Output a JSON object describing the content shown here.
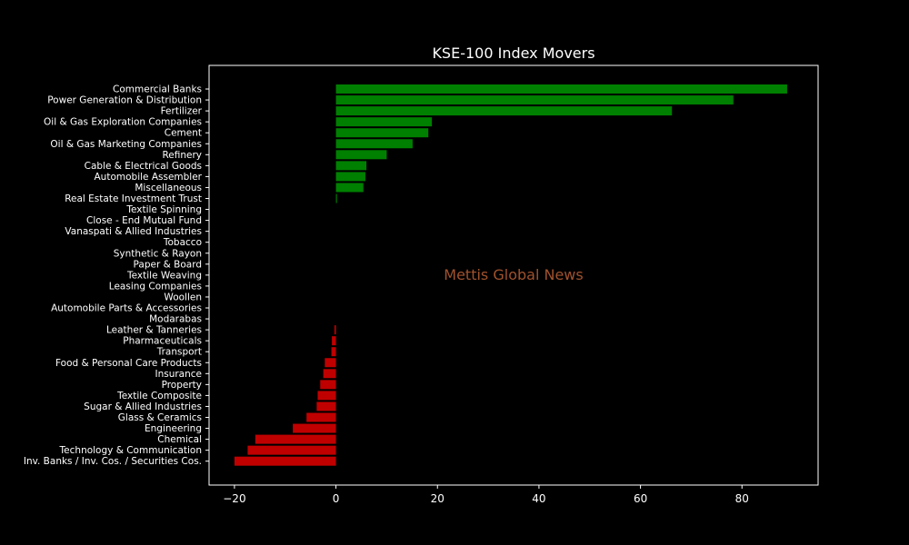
{
  "colors": {
    "background": "#000000",
    "positive": "#008000",
    "negative": "#c00000",
    "text": "#ffffff",
    "watermark": "#a0522d"
  },
  "watermark": "Mettis Global News",
  "chart_data": {
    "type": "bar",
    "orientation": "horizontal",
    "title": "KSE-100 Index Movers",
    "xlabel": "",
    "ylabel": "",
    "xlim": [
      -25,
      95
    ],
    "xticks": [
      -20,
      0,
      20,
      40,
      60,
      80
    ],
    "xtick_labels": [
      "−20",
      "0",
      "20",
      "40",
      "60",
      "80"
    ],
    "grid": false,
    "categories": [
      "Commercial Banks",
      "Power Generation & Distribution",
      "Fertilizer",
      "Oil & Gas Exploration Companies",
      "Cement",
      "Oil & Gas Marketing Companies",
      "Refinery",
      "Cable & Electrical Goods",
      "Automobile Assembler",
      "Miscellaneous",
      "Real Estate Investment Trust",
      "Textile Spinning",
      "Close - End Mutual Fund",
      "Vanaspati & Allied Industries",
      "Tobacco",
      "Synthetic & Rayon",
      "Paper & Board",
      "Textile Weaving",
      "Leasing Companies",
      "Woollen",
      "Automobile Parts & Accessories",
      "Modarabas",
      "Leather & Tanneries",
      "Pharmaceuticals",
      "Transport",
      "Food & Personal Care Products",
      "Insurance",
      "Property",
      "Textile Composite",
      "Sugar & Allied Industries",
      "Glass & Ceramics",
      "Engineering",
      "Chemical",
      "Technology & Communication",
      "Inv. Banks / Inv. Cos. / Securities Cos."
    ],
    "values": [
      88.9,
      78.3,
      66.2,
      18.9,
      18.2,
      15.1,
      10.0,
      6.0,
      5.8,
      5.4,
      0.2,
      0,
      0,
      0,
      0,
      0,
      0,
      0,
      0,
      0,
      0,
      0,
      -0.3,
      -0.8,
      -0.9,
      -2.2,
      -2.5,
      -3.1,
      -3.6,
      -3.8,
      -5.8,
      -8.5,
      -15.9,
      -17.4,
      -20.0
    ]
  }
}
